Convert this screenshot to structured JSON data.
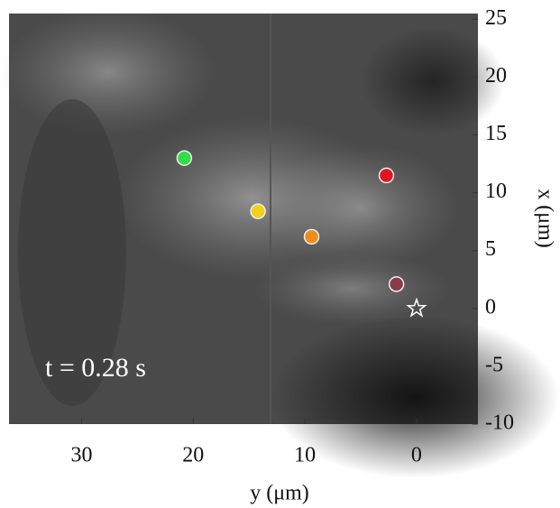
{
  "chart_data": {
    "type": "scatter",
    "xlabel": "y (μm)",
    "ylabel": "x (μm)",
    "annotation": "t = 0.28 s",
    "xlim": [
      36.5,
      -5.5
    ],
    "xticks": [
      30,
      20,
      10,
      0
    ],
    "ylim": [
      -10,
      25.5
    ],
    "yticks": [
      25,
      20,
      15,
      10,
      5,
      0,
      -5,
      -10
    ],
    "points": {
      "x": [
        20.8,
        14.2,
        9.4,
        2.7,
        1.8
      ],
      "y": [
        13.0,
        8.4,
        6.2,
        11.5,
        2.1
      ],
      "colors": [
        "#33dd44",
        "#f2d21a",
        "#f08c1a",
        "#e0161e",
        "#8a3a4a"
      ]
    },
    "origin_marker": {
      "x": 0,
      "y": 0
    }
  }
}
